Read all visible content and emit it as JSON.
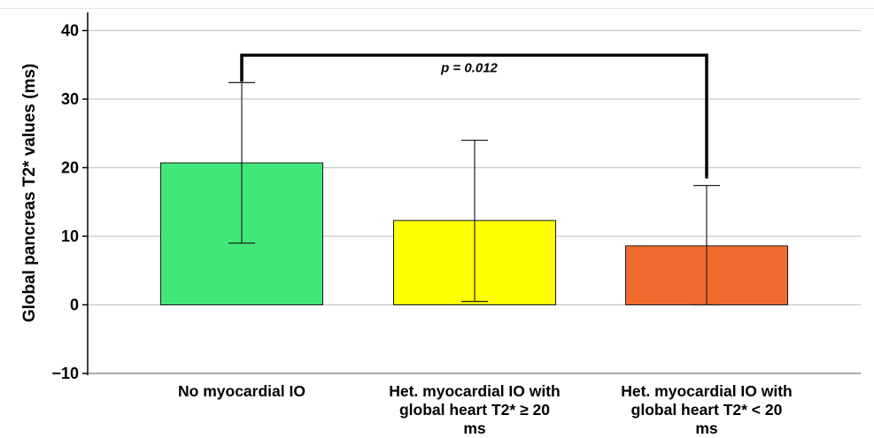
{
  "chart_data": {
    "type": "bar",
    "ylabel": "Global pancreas T2* values (ms)",
    "xlabel": "",
    "ylim": [
      -10,
      43
    ],
    "yticks": [
      -10,
      0,
      10,
      20,
      30,
      40
    ],
    "grid": true,
    "categories": [
      [
        "No myocardial IO"
      ],
      [
        "Het. myocardial IO with",
        "global heart T2* ≥ 20",
        "ms"
      ],
      [
        "Het. myocardial IO with",
        "global heart T2* < 20",
        "ms"
      ]
    ],
    "values": [
      20.7,
      12.3,
      8.6
    ],
    "error_low": [
      9.0,
      0.5,
      0.0
    ],
    "error_high": [
      32.4,
      24.0,
      17.4
    ],
    "colors": [
      "#40e87a",
      "#ffff00",
      "#f26a2e"
    ],
    "annotation": {
      "text": "p = 0.012",
      "from_category": 0,
      "to_category": 2,
      "y": 36.4
    }
  }
}
